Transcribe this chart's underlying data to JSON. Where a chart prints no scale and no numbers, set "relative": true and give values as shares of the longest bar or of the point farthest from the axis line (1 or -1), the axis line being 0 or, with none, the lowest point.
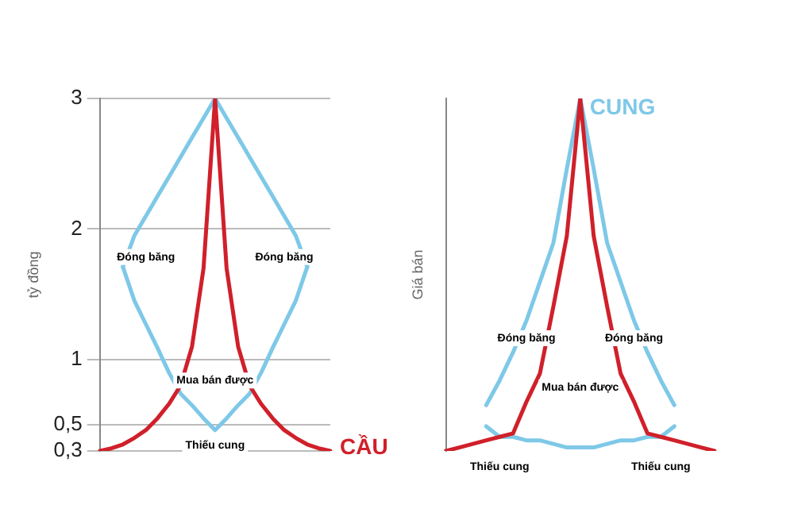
{
  "chart_data": [
    {
      "type": "line",
      "ylabel": "tỷ đồng",
      "categories": [
        null,
        null,
        null,
        null,
        null,
        null,
        null,
        null,
        null,
        null,
        null,
        null,
        null,
        null,
        null,
        null,
        null,
        null,
        null,
        null,
        null
      ],
      "ylim": [
        0.3,
        3
      ],
      "yticks": [
        {
          "value": 0.3,
          "label": "0,3"
        },
        {
          "value": 0.5,
          "label": "0,5"
        },
        1,
        2,
        3
      ],
      "grid": "y",
      "tick_labels": "y",
      "marker": "none",
      "line_style": "solid",
      "series": [
        {
          "name": "CẦU",
          "color": "#d0202a",
          "values": [
            0.3,
            0.32,
            0.35,
            0.4,
            0.46,
            0.55,
            0.66,
            0.8,
            1.1,
            1.7,
            3,
            1.7,
            1.1,
            0.8,
            0.66,
            0.55,
            0.46,
            0.4,
            0.35,
            0.32,
            0.3
          ]
        },
        {
          "color": "#7ec8e8",
          "values": [
            null,
            null,
            1.71,
            1.95,
            2.1,
            2.25,
            2.4,
            2.55,
            2.7,
            2.85,
            3,
            2.85,
            2.7,
            2.55,
            2.4,
            2.25,
            2.1,
            1.95,
            1.71,
            null,
            null
          ]
        },
        {
          "color": "#7ec8e8",
          "values": [
            null,
            null,
            1.71,
            1.45,
            1.27,
            1.09,
            0.9,
            0.74,
            0.65,
            0.55,
            0.46,
            0.55,
            0.65,
            0.74,
            0.9,
            1.09,
            1.27,
            1.45,
            1.71,
            null,
            null
          ]
        }
      ],
      "annotations": [
        "Đóng băng",
        "Đóng băng",
        "Mua bán được",
        "Thiếu cung"
      ]
    },
    {
      "type": "line",
      "relative": true,
      "ylabel": "Giá bán",
      "categories": [
        null,
        null,
        null,
        null,
        null,
        null,
        null,
        null,
        null,
        null,
        null,
        null,
        null,
        null,
        null,
        null,
        null,
        null,
        null,
        null,
        null
      ],
      "tick_labels": false,
      "marker": "none",
      "line_style": "solid",
      "series": [
        {
          "color": "#d0202a",
          "values": [
            0,
            0.01,
            0.02,
            0.03,
            0.04,
            0.05,
            0.14,
            0.22,
            0.41,
            0.61,
            1,
            0.61,
            0.41,
            0.22,
            0.14,
            0.05,
            0.04,
            0.03,
            0.02,
            0.01,
            0
          ]
        },
        {
          "name": "CUNG",
          "color": "#7ec8e8",
          "values": [
            null,
            null,
            null,
            0.13,
            0.2,
            0.28,
            0.37,
            0.48,
            0.59,
            0.8,
            1,
            0.8,
            0.59,
            0.48,
            0.37,
            0.28,
            0.2,
            0.13,
            null,
            null,
            null
          ]
        },
        {
          "color": "#7ec8e8",
          "values": [
            null,
            null,
            null,
            0.07,
            0.04,
            0.04,
            0.03,
            0.03,
            0.02,
            0.01,
            0.01,
            0.01,
            0.02,
            0.03,
            0.03,
            0.04,
            0.04,
            0.07,
            null,
            null,
            null
          ]
        }
      ],
      "annotations": [
        "Đóng băng",
        "Đóng băng",
        "Mua bán được",
        "Thiếu cung",
        "Thiếu cung"
      ]
    }
  ]
}
